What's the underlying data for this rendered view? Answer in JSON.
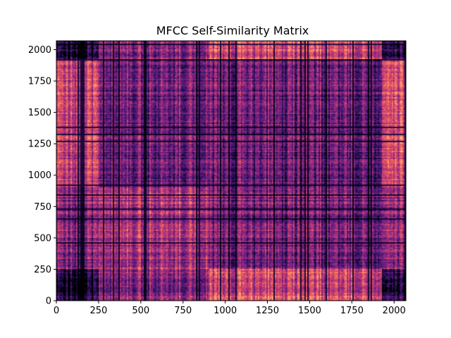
{
  "chart_data": {
    "type": "heatmap",
    "title": "MFCC Self-Similarity Matrix",
    "xlabel": "",
    "ylabel": "",
    "xlim": [
      0,
      2070
    ],
    "ylim": [
      0,
      2070
    ],
    "x_ticks": [
      0,
      250,
      500,
      750,
      1000,
      1250,
      1500,
      1750,
      2000
    ],
    "y_ticks": [
      0,
      250,
      500,
      750,
      1000,
      1250,
      1500,
      1750,
      2000
    ],
    "colormap": "magma",
    "colormap_stops": [
      "#000004",
      "#2c115f",
      "#721f81",
      "#b73779",
      "#f1605d",
      "#feb078",
      "#fcfdbf"
    ],
    "grid": false,
    "block_boundaries": [
      0,
      250,
      900,
      1925,
      2070
    ],
    "block_similarity": [
      [
        0.1,
        0.38,
        0.55,
        0.12
      ],
      [
        0.38,
        0.46,
        0.32,
        0.4
      ],
      [
        0.55,
        0.32,
        0.3,
        0.58
      ],
      [
        0.12,
        0.4,
        0.58,
        0.14
      ]
    ]
  }
}
